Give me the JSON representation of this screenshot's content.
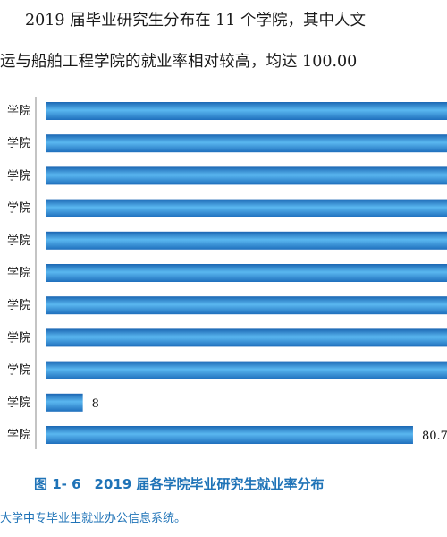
{
  "text": {
    "line1": "2019 届毕业研究生分布在 11 个学院，其中人文",
    "line2": "运与船舶工程学院的就业率相对较高，均达 100.00",
    "caption": "图 1- 6　2019 届各学院毕业研究生就业率分布",
    "source": "大学中专毕业生就业办公信息系统。"
  },
  "chart_data": {
    "type": "bar",
    "orientation": "horizontal",
    "categories": [
      "学院",
      "学院",
      "学院",
      "学院",
      "学院",
      "学院",
      "学院",
      "学院",
      "学院",
      "学院",
      "学院"
    ],
    "values": [
      100,
      100,
      100,
      100,
      100,
      100,
      100,
      100,
      100,
      8,
      80.7
    ],
    "value_labels": [
      "",
      "",
      "",
      "",
      "",
      "",
      "",
      "",
      "",
      "8",
      "80.7"
    ],
    "title": "图 1- 6　2019 届各学院毕业研究生就业率分布",
    "xlabel": "",
    "ylabel": "",
    "xlim": [
      0,
      100
    ],
    "grid": false,
    "colors": {
      "bar_dark": "#1b66b3",
      "bar_light": "#5ab7f0",
      "caption": "#1f73b7"
    }
  }
}
